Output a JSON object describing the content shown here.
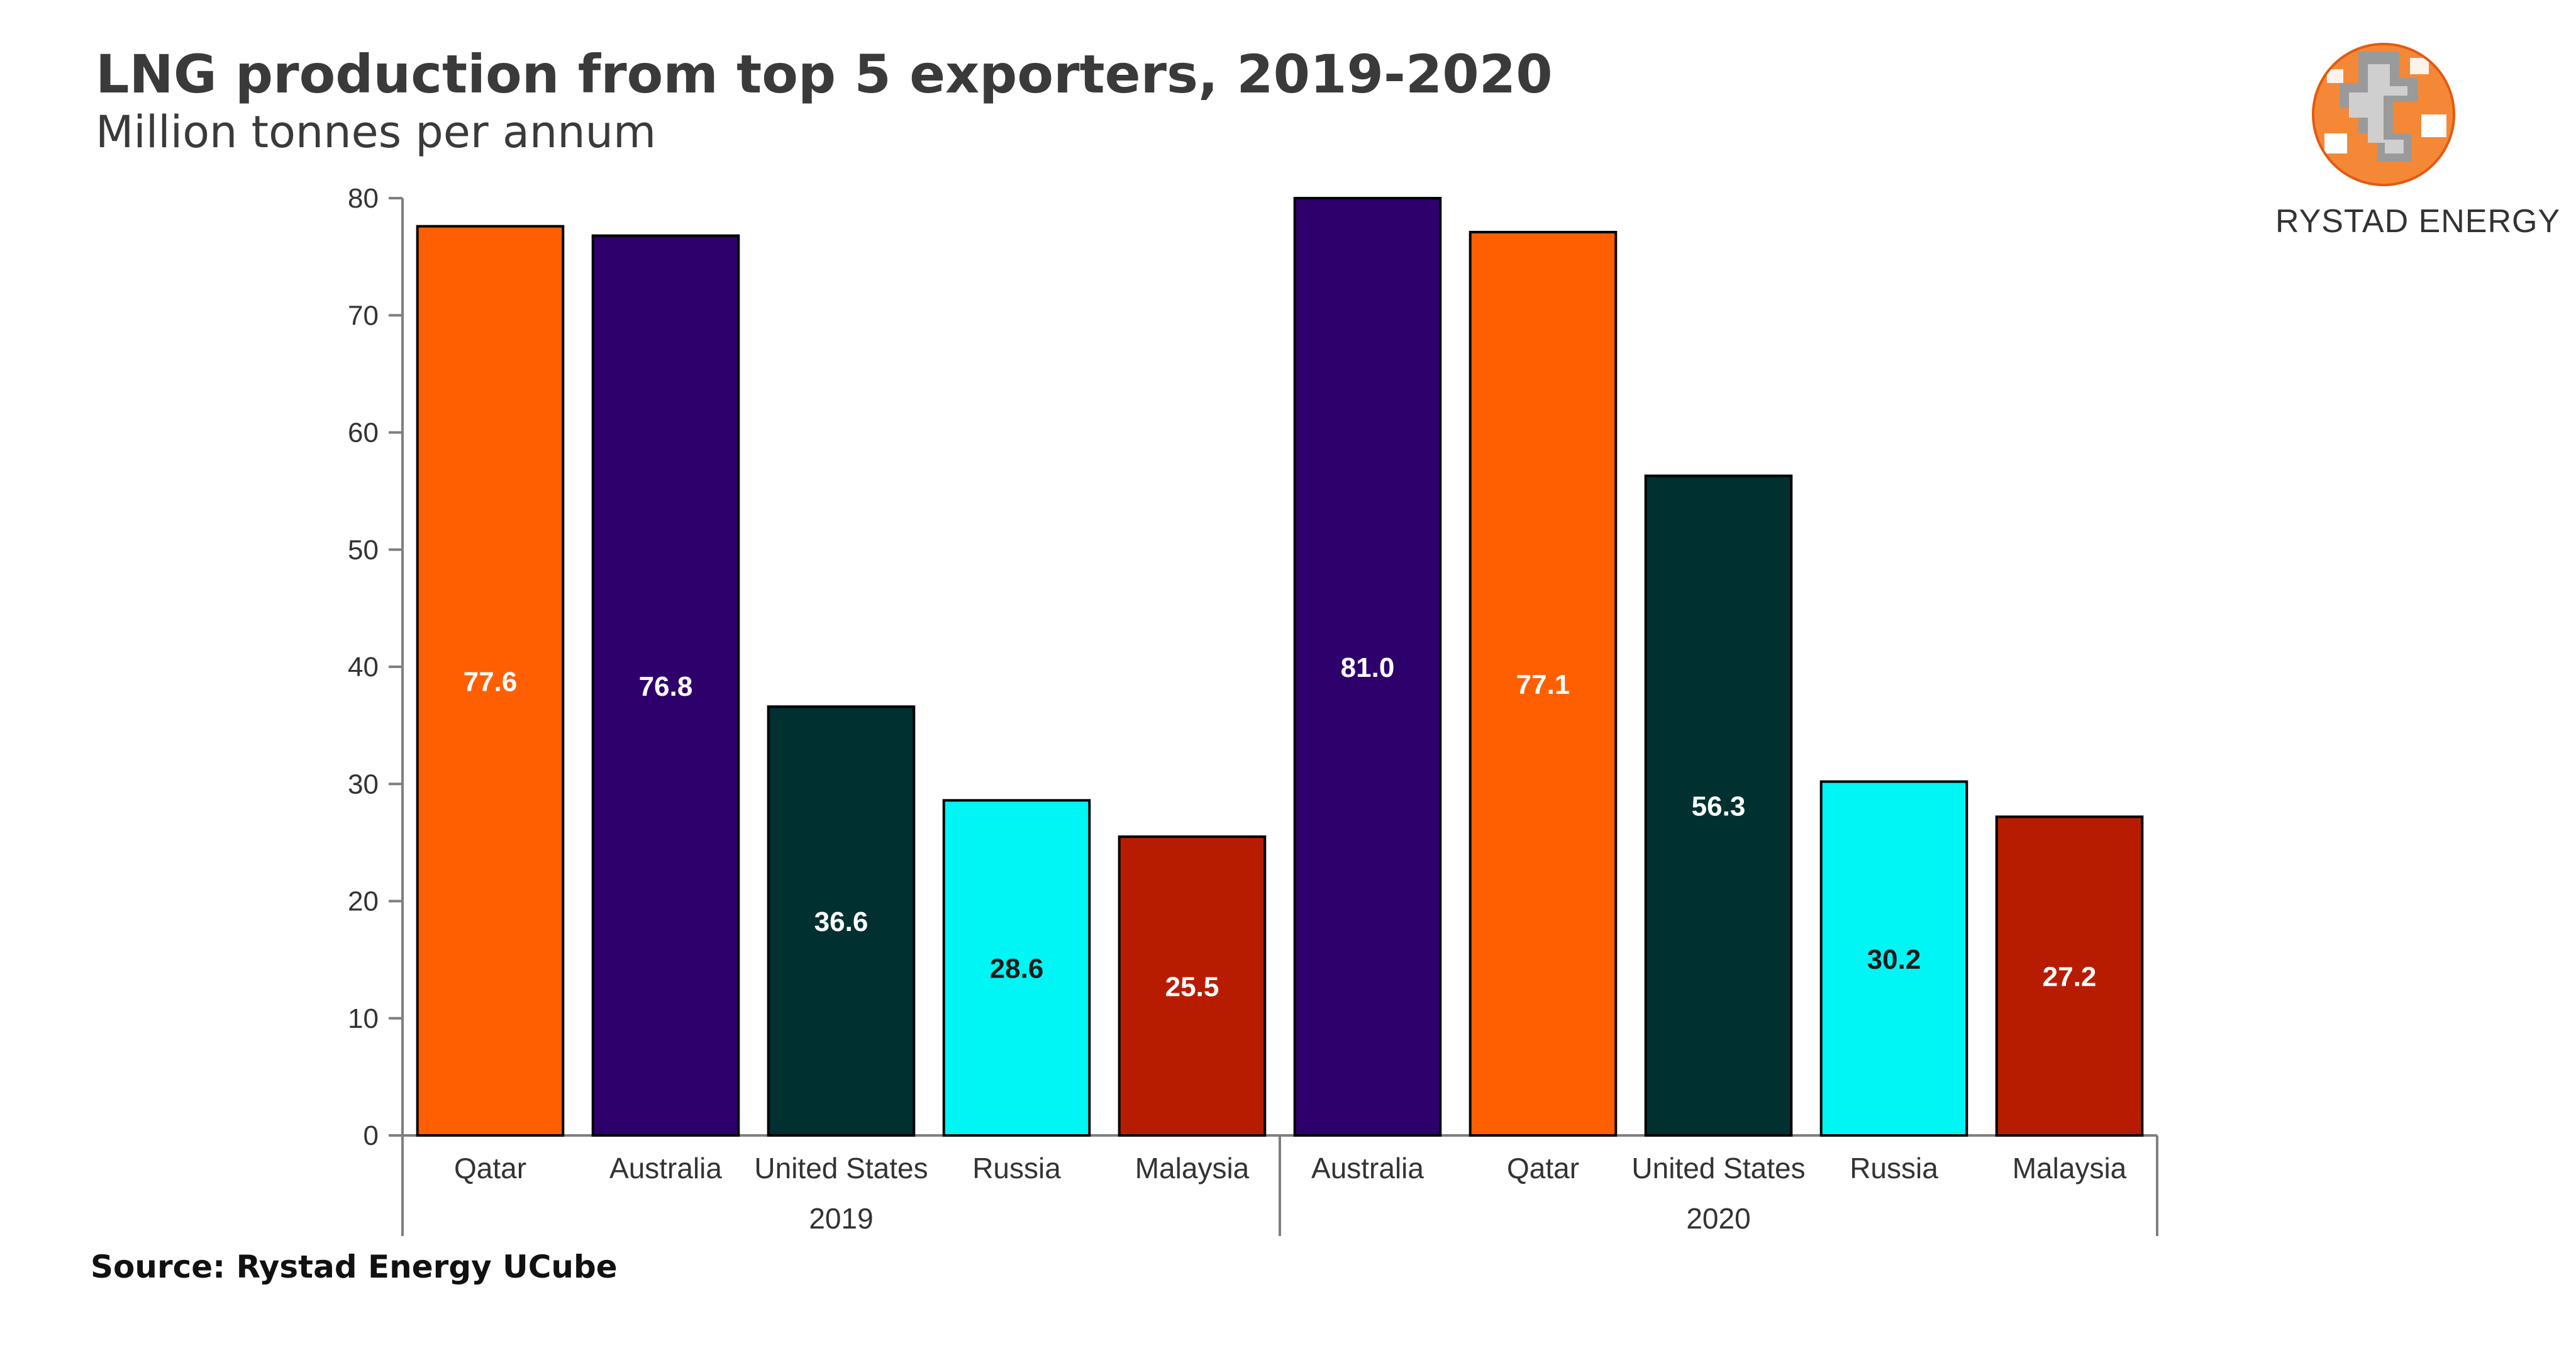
{
  "header": {
    "title": "LNG production from top 5 exporters, 2019-2020",
    "subtitle": "Million tonnes per annum"
  },
  "footer": {
    "source": "Source: Rystad Energy UCube"
  },
  "brand": {
    "name": "RYSTAD ENERGY",
    "logo_icon": "globe-grid-icon",
    "logo_colors": [
      "#f26b1d",
      "#f7a04b",
      "#9a9a9a",
      "#c9c9c9"
    ]
  },
  "chart_data": {
    "type": "bar",
    "title": "LNG production from top 5 exporters, 2019-2020",
    "subtitle": "Million tonnes per annum",
    "xlabel": "",
    "ylabel": "",
    "ylim": [
      0,
      80
    ],
    "yticks": [
      0,
      10,
      20,
      30,
      40,
      50,
      60,
      70,
      80
    ],
    "grid": false,
    "legend": "none",
    "groups": [
      {
        "name": "2019",
        "bars": [
          {
            "category": "Qatar",
            "value": 77.6,
            "color": "#ff5f00",
            "label_color": "#ffffff"
          },
          {
            "category": "Australia",
            "value": 76.8,
            "color": "#2e006c",
            "label_color": "#ffffff"
          },
          {
            "category": "United States",
            "value": 36.6,
            "color": "#003030",
            "label_color": "#ffffff"
          },
          {
            "category": "Russia",
            "value": 28.6,
            "color": "#00f5f5",
            "label_color": "#1a1a1a"
          },
          {
            "category": "Malaysia",
            "value": 25.5,
            "color": "#b81c00",
            "label_color": "#ffffff"
          }
        ]
      },
      {
        "name": "2020",
        "bars": [
          {
            "category": "Australia",
            "value": 81.0,
            "color": "#2e006c",
            "label_color": "#ffffff"
          },
          {
            "category": "Qatar",
            "value": 77.1,
            "color": "#ff5f00",
            "label_color": "#ffffff"
          },
          {
            "category": "United States",
            "value": 56.3,
            "color": "#003030",
            "label_color": "#ffffff"
          },
          {
            "category": "Russia",
            "value": 30.2,
            "color": "#00f5f5",
            "label_color": "#1a1a1a"
          },
          {
            "category": "Malaysia",
            "value": 27.2,
            "color": "#b81c00",
            "label_color": "#ffffff"
          }
        ]
      }
    ]
  }
}
